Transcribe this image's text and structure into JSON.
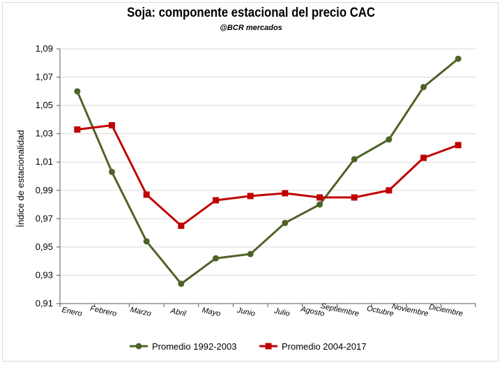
{
  "chart_data": {
    "type": "line",
    "title": "Soja: componente estacional del precio CAC",
    "subtitle": "@BCR mercados",
    "xlabel": "",
    "ylabel": "Índice de estacionalidad",
    "categories": [
      "Enero",
      "Febrero",
      "Marzo",
      "Abril",
      "Mayo",
      "Junio",
      "Julio",
      "Agosto",
      "Septiembre",
      "Octubre",
      "Noviembre",
      "Diciembre"
    ],
    "ylim": [
      0.91,
      1.09
    ],
    "yticks": [
      "1,09",
      "1,07",
      "1,05",
      "1,03",
      "1,01",
      "0,99",
      "0,97",
      "0,95",
      "0,93",
      "0,91"
    ],
    "ytick_values": [
      1.09,
      1.07,
      1.05,
      1.03,
      1.01,
      0.99,
      0.97,
      0.95,
      0.93,
      0.91
    ],
    "grid": true,
    "legend": "bottom",
    "series": [
      {
        "name": "Promedio 1992-2003",
        "color": "#4f6228",
        "marker": "circle",
        "values": [
          1.06,
          1.003,
          0.954,
          0.924,
          0.942,
          0.945,
          0.967,
          0.98,
          1.012,
          1.026,
          1.063,
          1.083
        ]
      },
      {
        "name": "Promedio 2004-2017",
        "color": "#c00000",
        "marker": "square",
        "values": [
          1.033,
          1.036,
          0.987,
          0.965,
          0.983,
          0.986,
          0.988,
          0.985,
          0.985,
          0.99,
          1.013,
          1.022
        ]
      }
    ]
  }
}
